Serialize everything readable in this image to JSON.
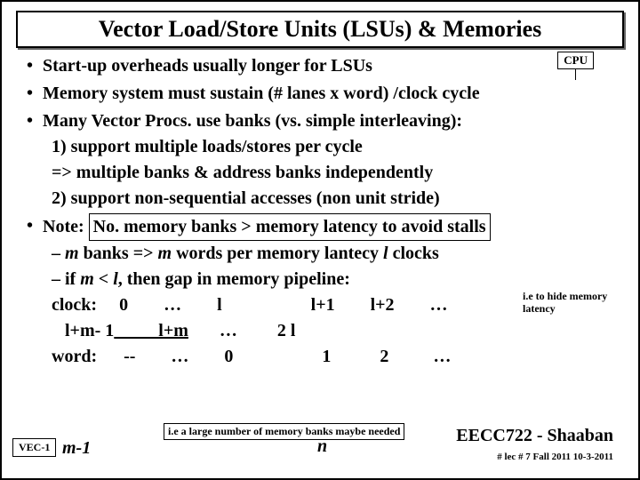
{
  "title": "Vector Load/Store Units (LSUs) & Memories",
  "cpu_badge": "CPU",
  "bullets": {
    "b1": "Start-up overheads usually longer for LSUs",
    "b2": "Memory system must sustain (# lanes x word) /clock cycle",
    "b3": "Many Vector Procs. use banks (vs. simple interleaving):",
    "b3_1": "1) support multiple loads/stores per cycle",
    "b3_2": "=> multiple banks & address banks independently",
    "b3_3": "2) support non-sequential accesses (non unit stride)",
    "b4_pre": "Note: ",
    "b4_box": "No. memory banks > memory latency to avoid stalls",
    "s1_a": "– ",
    "s1_b": "m",
    "s1_c": " banks => ",
    "s1_d": "m",
    "s1_e": " words per memory lantecy ",
    "s1_f": "l",
    "s1_g": " clocks",
    "s2_a": "– if ",
    "s2_b": "m",
    "s2_c": " < ",
    "s2_d": " l",
    "s2_e": ", then gap in memory pipeline:"
  },
  "rows": {
    "clock1": "clock:     0        …        l                    l+1        l+2        …",
    "clock2_a": "   l+m- 1",
    "clock2_b": "          l+m",
    "clock2_c": "       …         2 l",
    "word": "word:      --        …        0                    1           2          …"
  },
  "side_note": "i.e to hide memory latency",
  "mem_note": "i.e a large number of memory\nbanks maybe needed",
  "m1": "m-1",
  "n_sym": "n",
  "vec_badge": "VEC-1",
  "footer_right": "EECC722 - Shaaban",
  "footer_sub": "# lec # 7    Fall 2011    10-3-2011"
}
